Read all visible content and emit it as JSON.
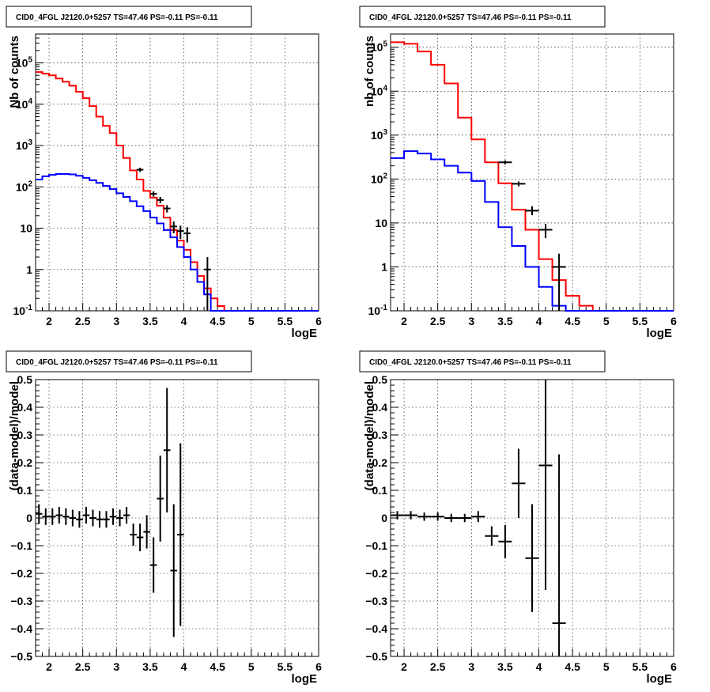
{
  "chart_data": [
    {
      "id": "counts-left",
      "type": "line",
      "title": "CID0_4FGL J2120.0+5257 TS=47.46 PS=-0.11 PS=-0.11",
      "xlabel": "logE",
      "ylabel": "Nb of counts",
      "xlim": [
        1.8,
        6.0
      ],
      "ylim": [
        0.1,
        500000
      ],
      "yscale": "log",
      "grid": true,
      "x_ticks": [
        "2",
        "2.5",
        "3",
        "3.5",
        "4",
        "4.5",
        "5",
        "5.5",
        "6"
      ],
      "y_ticks": [
        "10^-1",
        "1",
        "10",
        "10^2",
        "10^3",
        "10^4",
        "10^5"
      ],
      "series": [
        {
          "color": "#ff0000",
          "style": "step",
          "edges": [
            1.8,
            1.9,
            2.0,
            2.1,
            2.2,
            2.3,
            2.4,
            2.5,
            2.6,
            2.7,
            2.8,
            2.9,
            3.0,
            3.1,
            3.2,
            3.3,
            3.4,
            3.5,
            3.6,
            3.7,
            3.8,
            3.9,
            4.0,
            4.1,
            4.2,
            4.3,
            4.4,
            4.5,
            4.6,
            4.7,
            4.8,
            4.9,
            5.0,
            5.1,
            5.2,
            5.3,
            5.4,
            5.5,
            5.6,
            5.7,
            5.8,
            5.9,
            6.0
          ],
          "values": [
            60000,
            55000,
            50000,
            42000,
            35000,
            28000,
            20000,
            14000,
            9000,
            5000,
            3000,
            2000,
            1000,
            500,
            250,
            150,
            80,
            55,
            35,
            18,
            9,
            5,
            3,
            1.5,
            0.7,
            0.35,
            0.2,
            0.13,
            0.1,
            0.1,
            0.1,
            0.1,
            0.1,
            0.1,
            0.1,
            0.1,
            0.1,
            0.1,
            0.1,
            0.1,
            0.1,
            0.1
          ]
        },
        {
          "color": "#0000ff",
          "style": "step",
          "edges": [
            1.8,
            1.9,
            2.0,
            2.1,
            2.2,
            2.3,
            2.4,
            2.5,
            2.6,
            2.7,
            2.8,
            2.9,
            3.0,
            3.1,
            3.2,
            3.3,
            3.4,
            3.5,
            3.6,
            3.7,
            3.8,
            3.9,
            4.0,
            4.1,
            4.2,
            4.3,
            4.4,
            4.5,
            4.6,
            4.7,
            4.8,
            4.9,
            5.0,
            5.1,
            5.2,
            5.3,
            5.4,
            5.5,
            5.6,
            5.7,
            5.8,
            5.9,
            6.0
          ],
          "values": [
            150,
            180,
            195,
            205,
            205,
            200,
            185,
            165,
            145,
            125,
            105,
            88,
            70,
            57,
            45,
            34,
            26,
            18,
            13,
            9,
            6,
            3.5,
            2,
            1,
            0.5,
            0.25,
            0.1,
            0.1,
            0.1,
            0.1,
            0.1,
            0.1,
            0.1,
            0.1,
            0.1,
            0.1,
            0.1,
            0.1,
            0.1,
            0.1,
            0.1,
            0.1
          ]
        },
        {
          "color": "#000000",
          "style": "errorbar",
          "points": [
            {
              "x": 3.35,
              "y": 260,
              "xerr": 0.05,
              "ylo": 230,
              "yhi": 290
            },
            {
              "x": 3.55,
              "y": 68,
              "xerr": 0.05,
              "ylo": 58,
              "yhi": 78
            },
            {
              "x": 3.65,
              "y": 48,
              "xerr": 0.05,
              "ylo": 40,
              "yhi": 57
            },
            {
              "x": 3.75,
              "y": 30,
              "xerr": 0.05,
              "ylo": 24,
              "yhi": 36
            },
            {
              "x": 3.85,
              "y": 11,
              "xerr": 0.05,
              "ylo": 7.5,
              "yhi": 14.5
            },
            {
              "x": 3.95,
              "y": 8.5,
              "xerr": 0.05,
              "ylo": 5.5,
              "yhi": 11.5
            },
            {
              "x": 4.05,
              "y": 7.5,
              "xerr": 0.05,
              "ylo": 4.5,
              "yhi": 10.5
            },
            {
              "x": 4.35,
              "y": 1,
              "xerr": 0.05,
              "ylo": 0.1,
              "yhi": 2
            }
          ]
        }
      ]
    },
    {
      "id": "counts-right",
      "type": "line",
      "title": "CID0_4FGL J2120.0+5257 TS=47.46 PS=-0.11 PS=-0.11",
      "xlabel": "logE",
      "ylabel": "nb of counts",
      "xlim": [
        1.8,
        6.0
      ],
      "ylim": [
        0.1,
        200000
      ],
      "yscale": "log",
      "grid": true,
      "x_ticks": [
        "2",
        "2.5",
        "3",
        "3.5",
        "4",
        "4.5",
        "5",
        "5.5",
        "6"
      ],
      "y_ticks": [
        "10^-1",
        "1",
        "10",
        "10^2",
        "10^3",
        "10^4",
        "10^5"
      ],
      "series": [
        {
          "color": "#ff0000",
          "style": "step",
          "edges": [
            1.8,
            2.0,
            2.2,
            2.4,
            2.6,
            2.8,
            3.0,
            3.2,
            3.4,
            3.6,
            3.8,
            4.0,
            4.2,
            4.4,
            4.6,
            4.8,
            5.0,
            5.2,
            5.4,
            5.6,
            5.8,
            6.0
          ],
          "values": [
            130000,
            120000,
            80000,
            40000,
            15000,
            2500,
            800,
            240,
            80,
            20,
            7,
            1.5,
            0.5,
            0.22,
            0.13,
            0.1,
            0.1,
            0.1,
            0.1,
            0.1,
            0.1
          ]
        },
        {
          "color": "#0000ff",
          "style": "step",
          "edges": [
            1.8,
            2.0,
            2.2,
            2.4,
            2.6,
            2.8,
            3.0,
            3.2,
            3.4,
            3.6,
            3.8,
            4.0,
            4.2,
            4.4,
            4.6,
            4.8,
            5.0,
            5.2,
            5.4,
            5.6,
            5.8,
            6.0
          ],
          "values": [
            300,
            430,
            380,
            280,
            200,
            140,
            90,
            30,
            8,
            3,
            1,
            0.35,
            0.13,
            0.1,
            0.1,
            0.1,
            0.1,
            0.1,
            0.1,
            0.1,
            0.1
          ]
        },
        {
          "color": "#000000",
          "style": "errorbar",
          "points": [
            {
              "x": 3.5,
              "y": 240,
              "xerr": 0.1,
              "ylo": 215,
              "yhi": 265
            },
            {
              "x": 3.7,
              "y": 78,
              "xerr": 0.1,
              "ylo": 68,
              "yhi": 88
            },
            {
              "x": 3.9,
              "y": 19,
              "xerr": 0.1,
              "ylo": 15,
              "yhi": 24
            },
            {
              "x": 4.1,
              "y": 7,
              "xerr": 0.1,
              "ylo": 4.5,
              "yhi": 9.5
            },
            {
              "x": 4.3,
              "y": 1,
              "xerr": 0.1,
              "ylo": 0.1,
              "yhi": 2
            }
          ]
        }
      ]
    },
    {
      "id": "residual-left",
      "type": "scatter",
      "title": "CID0_4FGL J2120.0+5257 TS=47.46 PS=-0.11 PS=-0.11",
      "xlabel": "logE",
      "ylabel": "(data-model)/model",
      "xlim": [
        1.8,
        6.0
      ],
      "ylim": [
        -0.5,
        0.5
      ],
      "yscale": "linear",
      "grid": true,
      "x_ticks": [
        "2",
        "2.5",
        "3",
        "3.5",
        "4",
        "4.5",
        "5",
        "5.5",
        "6"
      ],
      "y_ticks": [
        "-0.5",
        "-0.4",
        "-0.3",
        "-0.2",
        "-0.1",
        "0",
        "0.1",
        "0.2",
        "0.3",
        "0.4",
        "0.5"
      ],
      "series": [
        {
          "color": "#000000",
          "style": "errorbar",
          "points": [
            {
              "x": 1.85,
              "y": 0.015,
              "xerr": 0.05,
              "ylo": -0.02,
              "yhi": 0.05
            },
            {
              "x": 1.95,
              "y": 0.005,
              "xerr": 0.05,
              "ylo": -0.025,
              "yhi": 0.035
            },
            {
              "x": 2.05,
              "y": 0.005,
              "xerr": 0.05,
              "ylo": -0.025,
              "yhi": 0.035
            },
            {
              "x": 2.15,
              "y": 0.01,
              "xerr": 0.05,
              "ylo": -0.02,
              "yhi": 0.04
            },
            {
              "x": 2.25,
              "y": 0.005,
              "xerr": 0.05,
              "ylo": -0.025,
              "yhi": 0.035
            },
            {
              "x": 2.35,
              "y": 0.0,
              "xerr": 0.05,
              "ylo": -0.03,
              "yhi": 0.03
            },
            {
              "x": 2.45,
              "y": -0.005,
              "xerr": 0.05,
              "ylo": -0.035,
              "yhi": 0.025
            },
            {
              "x": 2.55,
              "y": 0.01,
              "xerr": 0.05,
              "ylo": -0.02,
              "yhi": 0.04
            },
            {
              "x": 2.65,
              "y": 0.0,
              "xerr": 0.05,
              "ylo": -0.03,
              "yhi": 0.03
            },
            {
              "x": 2.75,
              "y": -0.005,
              "xerr": 0.05,
              "ylo": -0.035,
              "yhi": 0.025
            },
            {
              "x": 2.85,
              "y": -0.005,
              "xerr": 0.05,
              "ylo": -0.035,
              "yhi": 0.025
            },
            {
              "x": 2.95,
              "y": 0.005,
              "xerr": 0.05,
              "ylo": -0.025,
              "yhi": 0.035
            },
            {
              "x": 3.05,
              "y": 0.0,
              "xerr": 0.05,
              "ylo": -0.03,
              "yhi": 0.03
            },
            {
              "x": 3.15,
              "y": 0.01,
              "xerr": 0.05,
              "ylo": -0.02,
              "yhi": 0.04
            },
            {
              "x": 3.25,
              "y": -0.06,
              "xerr": 0.05,
              "ylo": -0.1,
              "yhi": -0.02
            },
            {
              "x": 3.35,
              "y": -0.07,
              "xerr": 0.05,
              "ylo": -0.12,
              "yhi": -0.02
            },
            {
              "x": 3.45,
              "y": -0.05,
              "xerr": 0.05,
              "ylo": -0.11,
              "yhi": 0.01
            },
            {
              "x": 3.55,
              "y": -0.17,
              "xerr": 0.05,
              "ylo": -0.27,
              "yhi": -0.07
            },
            {
              "x": 3.65,
              "y": 0.07,
              "xerr": 0.05,
              "ylo": -0.085,
              "yhi": 0.225
            },
            {
              "x": 3.75,
              "y": 0.245,
              "xerr": 0.05,
              "ylo": 0.02,
              "yhi": 0.47
            },
            {
              "x": 3.85,
              "y": -0.19,
              "xerr": 0.05,
              "ylo": -0.43,
              "yhi": 0.05
            },
            {
              "x": 3.95,
              "y": -0.06,
              "xerr": 0.05,
              "ylo": -0.39,
              "yhi": 0.27
            }
          ]
        }
      ]
    },
    {
      "id": "residual-right",
      "type": "scatter",
      "title": "CID0_4FGL J2120.0+5257 TS=47.46 PS=-0.11 PS=-0.11",
      "xlabel": "logE",
      "ylabel": "(data-model)/model",
      "xlim": [
        1.8,
        6.0
      ],
      "ylim": [
        -0.5,
        0.5
      ],
      "yscale": "linear",
      "grid": true,
      "x_ticks": [
        "2",
        "2.5",
        "3",
        "3.5",
        "4",
        "4.5",
        "5",
        "5.5",
        "6"
      ],
      "y_ticks": [
        "-0.5",
        "-0.4",
        "-0.3",
        "-0.2",
        "-0.1",
        "0",
        "0.1",
        "0.2",
        "0.3",
        "0.4",
        "0.5"
      ],
      "series": [
        {
          "color": "#000000",
          "style": "errorbar",
          "points": [
            {
              "x": 1.9,
              "y": 0.01,
              "xerr": 0.1,
              "ylo": -0.005,
              "yhi": 0.025
            },
            {
              "x": 2.1,
              "y": 0.01,
              "xerr": 0.1,
              "ylo": -0.005,
              "yhi": 0.025
            },
            {
              "x": 2.3,
              "y": 0.005,
              "xerr": 0.1,
              "ylo": -0.01,
              "yhi": 0.02
            },
            {
              "x": 2.5,
              "y": 0.005,
              "xerr": 0.1,
              "ylo": -0.01,
              "yhi": 0.02
            },
            {
              "x": 2.7,
              "y": 0.0,
              "xerr": 0.1,
              "ylo": -0.015,
              "yhi": 0.015
            },
            {
              "x": 2.9,
              "y": 0.0,
              "xerr": 0.1,
              "ylo": -0.015,
              "yhi": 0.015
            },
            {
              "x": 3.1,
              "y": 0.005,
              "xerr": 0.1,
              "ylo": -0.015,
              "yhi": 0.025
            },
            {
              "x": 3.3,
              "y": -0.065,
              "xerr": 0.1,
              "ylo": -0.1,
              "yhi": -0.03
            },
            {
              "x": 3.5,
              "y": -0.085,
              "xerr": 0.1,
              "ylo": -0.145,
              "yhi": -0.025
            },
            {
              "x": 3.7,
              "y": 0.125,
              "xerr": 0.1,
              "ylo": 0.0,
              "yhi": 0.25
            },
            {
              "x": 3.9,
              "y": -0.145,
              "xerr": 0.1,
              "ylo": -0.34,
              "yhi": 0.05
            },
            {
              "x": 4.1,
              "y": 0.19,
              "xerr": 0.1,
              "ylo": -0.26,
              "yhi": 0.5
            },
            {
              "x": 4.3,
              "y": -0.38,
              "xerr": 0.1,
              "ylo": -0.5,
              "yhi": 0.23
            }
          ]
        }
      ]
    }
  ]
}
